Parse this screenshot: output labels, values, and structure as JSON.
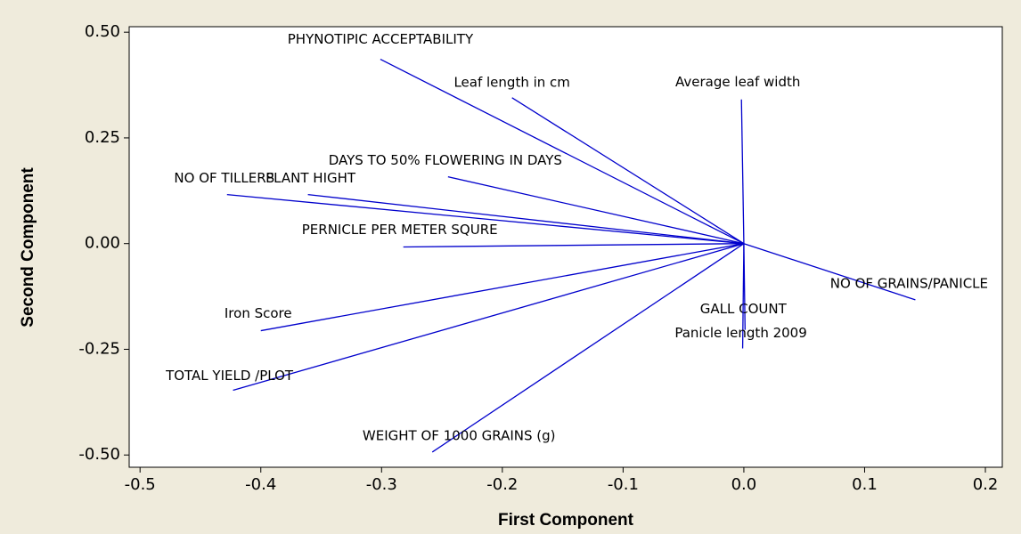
{
  "chart_data": {
    "type": "loading",
    "xlabel": "First Component",
    "ylabel": "Second Component",
    "labels": [
      "PHYNOTIPIC ACCEPTABILITY",
      "Leaf length in cm",
      "Average leaf width",
      "DAYS TO 50% FLOWERING  IN DAYS",
      "PLANT HIGHT",
      "NO OF TILLERS",
      "PERNICLE PER METER SQURE",
      "NO OF GRAINS/PANICLE",
      "GALL COUNT",
      "Panicle length 2009",
      "Iron Score",
      "TOTAL YIELD /PLOT",
      "WEIGHT OF 1000 GRAINS (g)"
    ],
    "x": [
      -0.301,
      -0.192,
      -0.002,
      -0.245,
      -0.361,
      -0.428,
      -0.282,
      0.142,
      0.001,
      -0.001,
      -0.4,
      -0.423,
      -0.258
    ],
    "y": [
      0.436,
      0.345,
      0.341,
      0.158,
      0.116,
      0.116,
      -0.008,
      -0.133,
      -0.204,
      -0.248,
      -0.206,
      -0.347,
      -0.493
    ],
    "color": "#0000cc",
    "xlim": [
      -0.509,
      0.214
    ],
    "ylim": [
      -0.529,
      0.513
    ],
    "xticks": [
      -0.5,
      -0.4,
      -0.3,
      -0.2,
      -0.1,
      {
        "value": 0,
        "label": "0.0"
      },
      0.1,
      0.2
    ],
    "yticks": [
      {
        "value": 0.5,
        "label": "0.50"
      },
      0.25,
      {
        "value": 0,
        "label": "0.00"
      },
      -0.25,
      {
        "value": -0.5,
        "label": "-0.50"
      }
    ]
  }
}
